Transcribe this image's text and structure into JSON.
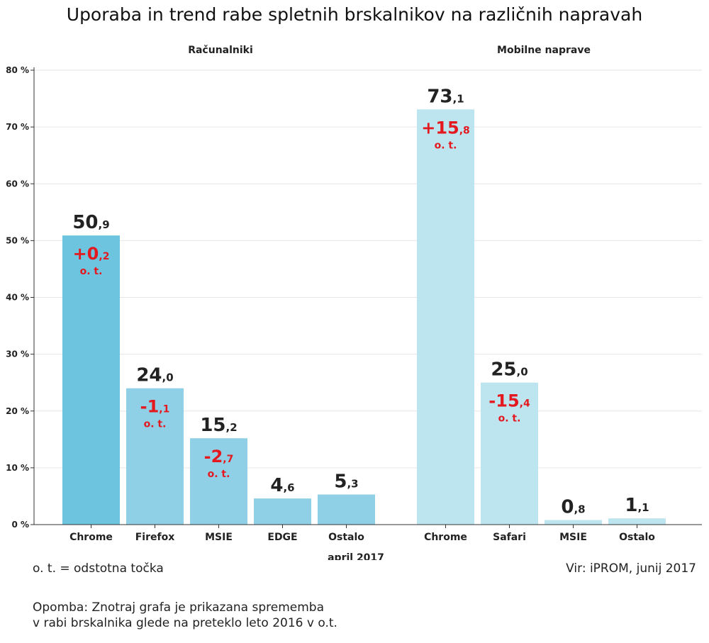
{
  "chart_data": {
    "type": "bar",
    "title": "Uporaba in trend rabe spletnih brskalnikov na različnih napravah",
    "xlabel": "april 2017",
    "ylabel": "",
    "ylim": [
      0,
      80
    ],
    "y_ticks": [
      0,
      10,
      20,
      30,
      40,
      50,
      60,
      70,
      80
    ],
    "y_tick_suffix": " %",
    "grid": true,
    "change_unit": "o. t.",
    "groups": [
      {
        "name": "Računalniki",
        "color": "#8fd0e6",
        "highlight_color": "#6cc4df",
        "categories": [
          "Chrome",
          "Firefox",
          "MSIE",
          "EDGE",
          "Ostalo"
        ],
        "values": [
          50.9,
          24.0,
          15.2,
          4.6,
          5.3
        ],
        "value_labels": [
          [
            "50",
            ",9"
          ],
          [
            "24",
            ",0"
          ],
          [
            "15",
            ",2"
          ],
          [
            "4",
            ",6"
          ],
          [
            "5",
            ",3"
          ]
        ],
        "change_labels": [
          [
            "+0",
            ",2"
          ],
          [
            "-1",
            ",1"
          ],
          [
            "-2",
            ",7"
          ],
          null,
          null
        ]
      },
      {
        "name": "Mobilne naprave",
        "color": "#bde5f0",
        "categories": [
          "Chrome",
          "Safari",
          "MSIE",
          "Ostalo"
        ],
        "values": [
          73.1,
          25.0,
          0.8,
          1.1
        ],
        "value_labels": [
          [
            "73",
            ",1"
          ],
          [
            "25",
            ",0"
          ],
          [
            "0",
            ",8"
          ],
          [
            "1",
            ",1"
          ]
        ],
        "change_labels": [
          [
            "+15",
            ",8"
          ],
          [
            "-15",
            ",4"
          ],
          null,
          null
        ]
      }
    ],
    "colors": {
      "text": "#222222",
      "change": "#e3191f",
      "grid": "#e6e6e6",
      "axis": "#333333"
    }
  },
  "notes": {
    "legend": "o. t. = odstotna točka",
    "source": "Vir: iPROM, junij 2017",
    "remark": "Opomba: Znotraj grafa je prikazana sprememba\nv rabi brskalnika glede na preteklo leto 2016 v o.t."
  }
}
